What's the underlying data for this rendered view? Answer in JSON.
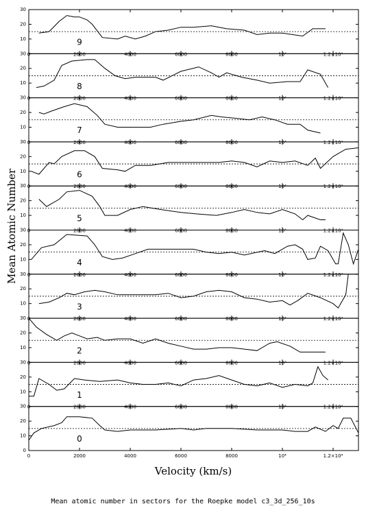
{
  "ylabel": "Mean Atomic Number",
  "xlabel": "Velocity (km/s)",
  "caption": "Mean atomic number in sectors for the Roepke model c3_3d_256_10s",
  "xlim": [
    0,
    13000
  ],
  "xticks": [
    0,
    2000,
    4000,
    6000,
    8000,
    {
      "value": 10000,
      "label": "10⁴"
    },
    {
      "value": 12000,
      "label": "1.2×10⁴"
    }
  ],
  "chart_data": [
    {
      "type": "line",
      "label": "9",
      "color": "#000000",
      "ylim": [
        0,
        30
      ],
      "yticks": [
        10,
        20,
        30
      ],
      "reference_line": 15,
      "x": [
        400,
        800,
        1200,
        1500,
        1800,
        2000,
        2300,
        2500,
        2900,
        3500,
        3800,
        4200,
        4600,
        5000,
        5500,
        6000,
        6500,
        7200,
        7800,
        8500,
        9000,
        9500,
        10000,
        10800,
        11200,
        11700
      ],
      "values": [
        14,
        15,
        22,
        26,
        25,
        25,
        23,
        20,
        11,
        10,
        12,
        10,
        12,
        15,
        16,
        18,
        18,
        19,
        17,
        16,
        13,
        14,
        14,
        12,
        17,
        17
      ]
    },
    {
      "type": "line",
      "label": "8",
      "color": "#000000",
      "ylim": [
        0,
        30
      ],
      "yticks": [
        10,
        20,
        30
      ],
      "reference_line": 15,
      "x": [
        300,
        600,
        1000,
        1300,
        1700,
        2300,
        2600,
        3000,
        3400,
        3800,
        4200,
        5000,
        5300,
        6000,
        6700,
        7200,
        7500,
        7800,
        8400,
        9000,
        9500,
        10200,
        10700,
        11000,
        11500,
        11800
      ],
      "values": [
        7,
        8,
        12,
        22,
        25,
        26,
        26,
        20,
        15,
        13,
        14,
        14,
        12,
        18,
        21,
        17,
        14,
        17,
        14,
        12,
        10,
        11,
        11,
        19,
        16,
        7
      ]
    },
    {
      "type": "line",
      "label": "7",
      "color": "#000000",
      "ylim": [
        0,
        30
      ],
      "yticks": [
        10,
        20,
        30
      ],
      "reference_line": 15,
      "x": [
        400,
        600,
        900,
        1400,
        1800,
        2300,
        2700,
        3000,
        3500,
        4000,
        4800,
        5300,
        6000,
        6500,
        7200,
        7600,
        8200,
        8700,
        9200,
        9700,
        10200,
        10700,
        11000,
        11500
      ],
      "values": [
        20,
        19,
        21,
        24,
        26,
        24,
        18,
        12,
        10,
        10,
        10,
        12,
        14,
        15,
        18,
        17,
        16,
        15,
        17,
        15,
        12,
        12,
        8,
        6
      ]
    },
    {
      "type": "line",
      "label": "6",
      "color": "#000000",
      "ylim": [
        0,
        30
      ],
      "yticks": [
        10,
        20,
        30
      ],
      "reference_line": 15,
      "x": [
        100,
        400,
        800,
        1000,
        1300,
        1800,
        2200,
        2600,
        2900,
        3500,
        3800,
        4200,
        4800,
        5500,
        6000,
        6800,
        7500,
        8000,
        8500,
        9000,
        9500,
        10000,
        10500,
        11000,
        11300,
        11500,
        12000,
        12500,
        13000
      ],
      "values": [
        10,
        8,
        16,
        15,
        20,
        24,
        24,
        20,
        12,
        11,
        10,
        14,
        14,
        16,
        16,
        16,
        16,
        17,
        16,
        13,
        17,
        16,
        17,
        14,
        19,
        12,
        20,
        25,
        26
      ]
    },
    {
      "type": "line",
      "label": "5",
      "color": "#000000",
      "ylim": [
        0,
        30
      ],
      "yticks": [
        10,
        20,
        30
      ],
      "reference_line": 15,
      "x": [
        400,
        700,
        1200,
        1500,
        2000,
        2500,
        2800,
        3000,
        3500,
        4000,
        4500,
        5200,
        6000,
        6600,
        7400,
        8000,
        8500,
        9000,
        9500,
        10000,
        10500,
        10800,
        11000,
        11500,
        11700
      ],
      "values": [
        21,
        16,
        21,
        26,
        27,
        23,
        16,
        10,
        10,
        14,
        16,
        14,
        12,
        11,
        10,
        12,
        14,
        12,
        11,
        14,
        11,
        7,
        10,
        7,
        7
      ]
    },
    {
      "type": "line",
      "label": "4",
      "color": "#000000",
      "ylim": [
        0,
        30
      ],
      "yticks": [
        10,
        20,
        30
      ],
      "reference_line": 15,
      "x": [
        100,
        500,
        1000,
        1500,
        2300,
        2600,
        2900,
        3300,
        3700,
        4200,
        4700,
        5500,
        6500,
        7000,
        7500,
        8000,
        8500,
        9300,
        9700,
        10200,
        10500,
        10800,
        11000,
        11300,
        11500,
        11800,
        12100,
        12200,
        12400,
        12600,
        12800,
        13000
      ],
      "values": [
        10,
        18,
        20,
        27,
        26,
        20,
        12,
        10,
        11,
        14,
        17,
        17,
        17,
        15,
        14,
        15,
        13,
        16,
        14,
        19,
        20,
        17,
        10,
        11,
        19,
        16,
        7,
        7,
        28,
        20,
        7,
        17
      ]
    },
    {
      "type": "line",
      "label": "3",
      "color": "#000000",
      "ylim": [
        0,
        30
      ],
      "yticks": [
        10,
        20,
        30
      ],
      "reference_line": 15,
      "x": [
        400,
        800,
        1200,
        1500,
        1800,
        2200,
        2600,
        3000,
        3500,
        4000,
        5000,
        5500,
        6000,
        6500,
        7000,
        7500,
        8000,
        8500,
        9000,
        9500,
        10000,
        10300,
        10600,
        11000,
        11500,
        12000,
        12200,
        12500,
        12600
      ],
      "values": [
        10,
        11,
        14,
        17,
        16,
        18,
        19,
        18,
        16,
        16,
        16,
        17,
        14,
        15,
        18,
        19,
        18,
        14,
        13,
        11,
        12,
        9,
        12,
        17,
        14,
        10,
        7,
        16,
        30
      ]
    },
    {
      "type": "line",
      "label": "2",
      "color": "#000000",
      "ylim": [
        0,
        30
      ],
      "yticks": [
        10,
        20,
        30
      ],
      "reference_line": 15,
      "x": [
        0,
        300,
        700,
        1100,
        1400,
        1700,
        2000,
        2300,
        2700,
        3000,
        3500,
        4000,
        4500,
        5000,
        5500,
        6000,
        6500,
        7000,
        7500,
        8000,
        8500,
        9000,
        9500,
        9800,
        10300,
        10700,
        11000,
        11700
      ],
      "values": [
        30,
        24,
        19,
        15,
        18,
        20,
        18,
        16,
        17,
        15,
        16,
        16,
        13,
        16,
        13,
        11,
        9,
        9,
        10,
        10,
        9,
        8,
        13,
        14,
        11,
        7,
        7,
        7
      ]
    },
    {
      "type": "line",
      "label": "1",
      "color": "#000000",
      "ylim": [
        0,
        30
      ],
      "yticks": [
        10,
        20,
        30
      ],
      "reference_line": 15,
      "x": [
        0,
        200,
        400,
        800,
        1100,
        1400,
        1800,
        2200,
        2800,
        3500,
        4000,
        4500,
        5000,
        5500,
        6000,
        6500,
        7000,
        7500,
        8000,
        8500,
        9000,
        9500,
        10000,
        10500,
        11000,
        11200,
        11400,
        11600,
        11800
      ],
      "values": [
        7,
        7,
        19,
        15,
        11,
        12,
        19,
        18,
        17,
        18,
        16,
        15,
        15,
        16,
        14,
        18,
        19,
        21,
        18,
        15,
        14,
        16,
        13,
        15,
        14,
        16,
        27,
        21,
        18
      ]
    },
    {
      "type": "line",
      "label": "0",
      "color": "#000000",
      "ylim": [
        0,
        30
      ],
      "yticks": [
        0,
        10,
        20,
        30
      ],
      "reference_line": 15,
      "x": [
        0,
        200,
        500,
        1000,
        1300,
        1500,
        2000,
        2500,
        2800,
        3000,
        3500,
        4000,
        5000,
        6000,
        6500,
        7000,
        7500,
        8000,
        9000,
        10000,
        10500,
        11000,
        11300,
        11700,
        12000,
        12200,
        12400,
        12700,
        13000
      ],
      "values": [
        7,
        12,
        15,
        17,
        19,
        23,
        23,
        22,
        17,
        14,
        13,
        14,
        14,
        15,
        14,
        15,
        15,
        15,
        14,
        14,
        13,
        13,
        16,
        13,
        17,
        15,
        22,
        22,
        12
      ]
    }
  ]
}
